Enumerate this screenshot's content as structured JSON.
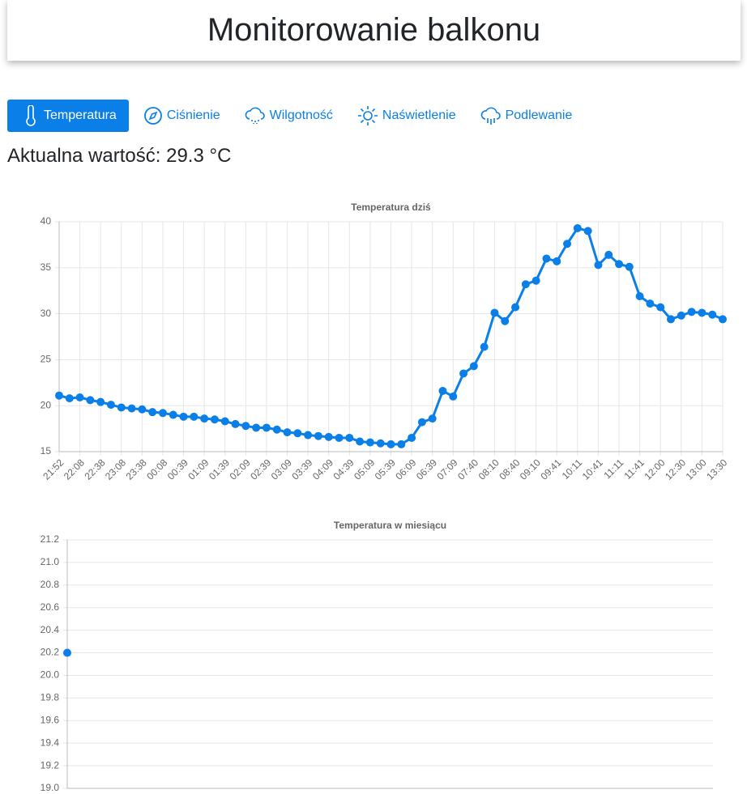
{
  "header": {
    "title": "Monitorowanie balkonu"
  },
  "tabs": [
    "Temperatura",
    "Ciśnienie",
    "Wilgotność",
    "Naświetlenie",
    "Podlewanie"
  ],
  "active_tab": 0,
  "current_value": "Aktualna wartość: 29.3 °C",
  "chart_data": [
    {
      "type": "line",
      "title": "Temperatura dziś",
      "color": "#0b7fe8",
      "grid": true,
      "categories": [
        "21:52",
        null,
        "22:08",
        null,
        "22:38",
        null,
        "23:08",
        null,
        "23:38",
        null,
        "00:08",
        null,
        "00:39",
        null,
        "01:09",
        null,
        "01:39",
        null,
        "02:09",
        null,
        "02:39",
        null,
        "03:09",
        null,
        "03:39",
        null,
        "04:09",
        null,
        "04:39",
        null,
        "05:09",
        null,
        "05:39",
        null,
        "06:09",
        null,
        "06:39",
        null,
        "07:09",
        null,
        "07:40",
        null,
        "08:10",
        null,
        "08:40",
        null,
        "09:10",
        null,
        "09:41",
        null,
        "10:11",
        null,
        "10:41",
        null,
        "11:11",
        null,
        "11:41",
        null,
        "12:00",
        null,
        "12:30",
        null,
        "13:00",
        null,
        "13:30"
      ],
      "values": [
        21.1,
        20.8,
        20.9,
        20.6,
        20.4,
        20.1,
        19.8,
        19.7,
        19.6,
        19.3,
        19.2,
        19.0,
        18.8,
        18.8,
        18.6,
        18.5,
        18.3,
        18.0,
        17.8,
        17.6,
        17.6,
        17.4,
        17.1,
        17.0,
        16.8,
        16.7,
        16.6,
        16.5,
        16.5,
        16.1,
        16.0,
        15.9,
        15.8,
        15.8,
        16.5,
        18.2,
        18.6,
        21.6,
        21.0,
        23.5,
        24.3,
        26.4,
        30.1,
        29.2,
        30.7,
        33.2,
        33.6,
        36.0,
        35.7,
        37.6,
        39.3,
        39.0,
        35.3,
        36.4,
        35.4,
        35.1,
        31.9,
        31.1,
        30.7,
        29.4,
        29.8,
        30.2,
        30.1,
        29.9,
        29.4
      ],
      "ylim": [
        15,
        40
      ],
      "yticks": [
        15,
        20,
        25,
        30,
        35,
        40
      ]
    },
    {
      "type": "line",
      "title": "Temperatura w miesiącu",
      "color": "#0b7fe8",
      "grid": true,
      "categories": [
        null
      ],
      "values": [
        20.2
      ],
      "ylim": [
        19,
        21.2
      ],
      "yticks": [
        {
          "value": 19,
          "label": "19.0"
        },
        {
          "value": 19.2,
          "label": "19.2"
        },
        {
          "value": 19.4,
          "label": "19.4"
        },
        {
          "value": 19.6,
          "label": "19.6"
        },
        {
          "value": 19.8,
          "label": "19.8"
        },
        {
          "value": 20,
          "label": "20.0"
        },
        {
          "value": 20.2,
          "label": "20.2"
        },
        {
          "value": 20.4,
          "label": "20.4"
        },
        {
          "value": 20.6,
          "label": "20.6"
        },
        {
          "value": 20.8,
          "label": "20.8"
        },
        {
          "value": 21,
          "label": "21.0"
        },
        {
          "value": 21.2,
          "label": "21.2"
        }
      ]
    }
  ]
}
